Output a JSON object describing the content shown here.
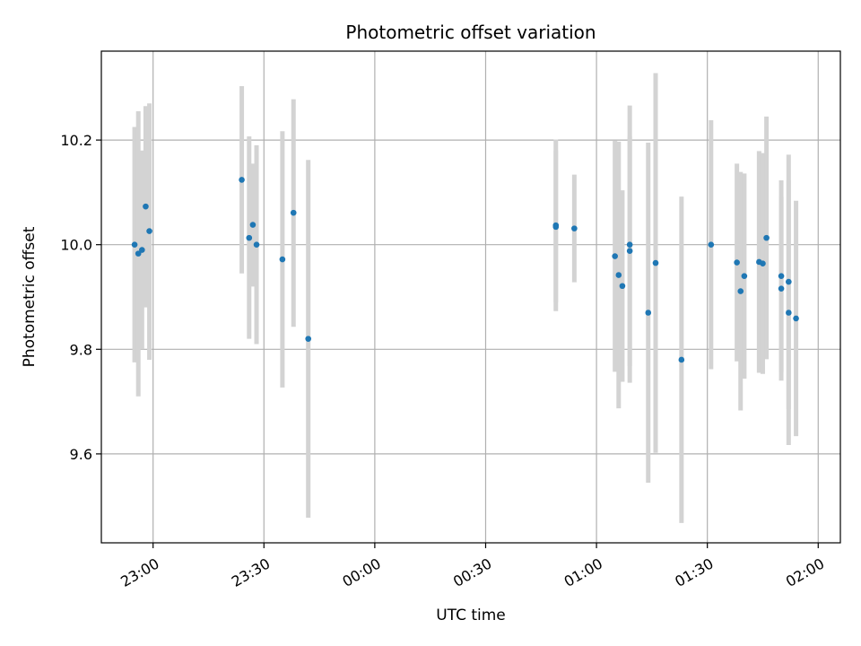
{
  "chart_data": {
    "type": "scatter",
    "title": "Photometric offset variation",
    "xlabel": "UTC time",
    "ylabel": "Photometric offset",
    "grid": true,
    "x_axis_kind": "time",
    "xlim": [
      "22:46",
      "02:06"
    ],
    "ylim": [
      9.43,
      10.37
    ],
    "x_ticks": [
      "23:00",
      "23:30",
      "00:00",
      "00:30",
      "01:00",
      "01:30",
      "02:00"
    ],
    "y_ticks": [
      "9.6",
      "9.8",
      "10.0",
      "10.2"
    ],
    "series": [
      {
        "marker_color": "#1f77b4",
        "errorbar_color": "#d3d3d3",
        "points": [
          {
            "x": "22:55",
            "y": 10.0,
            "lo": 9.775,
            "hi": 10.225
          },
          {
            "x": "22:56",
            "y": 9.983,
            "lo": 9.71,
            "hi": 10.255
          },
          {
            "x": "22:57",
            "y": 9.99,
            "lo": 9.8,
            "hi": 10.18
          },
          {
            "x": "22:58",
            "y": 10.073,
            "lo": 9.88,
            "hi": 10.265
          },
          {
            "x": "22:59",
            "y": 10.026,
            "lo": 9.78,
            "hi": 10.27
          },
          {
            "x": "23:24",
            "y": 10.124,
            "lo": 9.945,
            "hi": 10.303
          },
          {
            "x": "23:26",
            "y": 10.013,
            "lo": 9.82,
            "hi": 10.207
          },
          {
            "x": "23:27",
            "y": 10.038,
            "lo": 9.92,
            "hi": 10.155
          },
          {
            "x": "23:28",
            "y": 10.0,
            "lo": 9.81,
            "hi": 10.19
          },
          {
            "x": "23:35",
            "y": 9.972,
            "lo": 9.727,
            "hi": 10.217
          },
          {
            "x": "23:38",
            "y": 10.061,
            "lo": 9.843,
            "hi": 10.278
          },
          {
            "x": "23:42",
            "y": 9.82,
            "lo": 9.478,
            "hi": 10.162
          },
          {
            "x": "00:49",
            "y": 10.037,
            "lo": 9.873,
            "hi": 10.201
          },
          {
            "x": "00:49",
            "y": 10.034,
            "lo": 9.89,
            "hi": 10.18
          },
          {
            "x": "00:54",
            "y": 10.031,
            "lo": 9.928,
            "hi": 10.134
          },
          {
            "x": "01:05",
            "y": 9.978,
            "lo": 9.757,
            "hi": 10.199
          },
          {
            "x": "01:06",
            "y": 9.942,
            "lo": 9.687,
            "hi": 10.197
          },
          {
            "x": "01:07",
            "y": 9.921,
            "lo": 9.738,
            "hi": 10.104
          },
          {
            "x": "01:09",
            "y": 9.988,
            "lo": 9.768,
            "hi": 10.208
          },
          {
            "x": "01:09",
            "y": 10.0,
            "lo": 9.736,
            "hi": 10.266
          },
          {
            "x": "01:14",
            "y": 9.87,
            "lo": 9.545,
            "hi": 10.195
          },
          {
            "x": "01:16",
            "y": 9.965,
            "lo": 9.602,
            "hi": 10.328
          },
          {
            "x": "01:23",
            "y": 9.78,
            "lo": 9.468,
            "hi": 10.092
          },
          {
            "x": "01:31",
            "y": 10.0,
            "lo": 9.762,
            "hi": 10.238
          },
          {
            "x": "01:38",
            "y": 9.966,
            "lo": 9.777,
            "hi": 10.155
          },
          {
            "x": "01:39",
            "y": 9.911,
            "lo": 9.683,
            "hi": 10.139
          },
          {
            "x": "01:40",
            "y": 9.94,
            "lo": 9.744,
            "hi": 10.136
          },
          {
            "x": "01:44",
            "y": 9.967,
            "lo": 9.755,
            "hi": 10.179
          },
          {
            "x": "01:45",
            "y": 9.964,
            "lo": 9.753,
            "hi": 10.175
          },
          {
            "x": "01:46",
            "y": 10.013,
            "lo": 9.781,
            "hi": 10.245
          },
          {
            "x": "01:50",
            "y": 9.916,
            "lo": 9.74,
            "hi": 10.092
          },
          {
            "x": "01:50",
            "y": 9.94,
            "lo": 9.757,
            "hi": 10.123
          },
          {
            "x": "01:52",
            "y": 9.929,
            "lo": 9.686,
            "hi": 10.172
          },
          {
            "x": "01:52",
            "y": 9.87,
            "lo": 9.617,
            "hi": 10.123
          },
          {
            "x": "01:54",
            "y": 9.859,
            "lo": 9.634,
            "hi": 10.084
          }
        ]
      }
    ]
  }
}
